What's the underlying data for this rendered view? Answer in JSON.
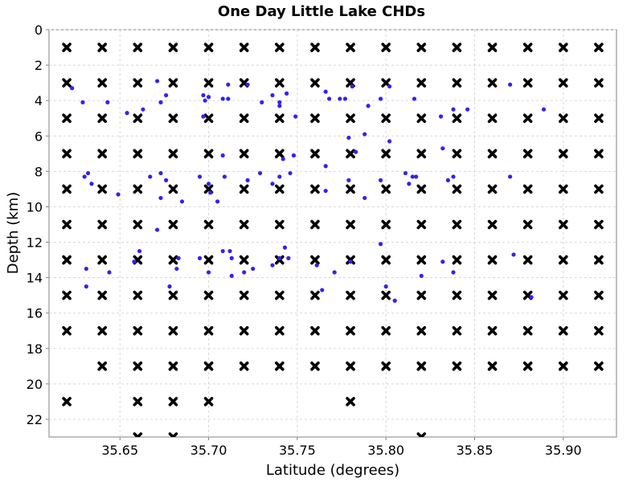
{
  "chart_data": {
    "type": "scatter",
    "title": "One Day Little Lake CHDs",
    "xlabel": "Latitude (degrees)",
    "ylabel": "Depth (km)",
    "xlim": [
      35.61,
      35.93
    ],
    "ylim": [
      0,
      23
    ],
    "y_inverted": true,
    "grid": true,
    "legend": "none",
    "x_ticks": [
      "35.65",
      "35.70",
      "35.75",
      "35.80",
      "35.85",
      "35.90"
    ],
    "x_tick_values": [
      35.65,
      35.7,
      35.75,
      35.8,
      35.85,
      35.9
    ],
    "y_ticks": [
      "0",
      "2",
      "4",
      "6",
      "8",
      "10",
      "12",
      "14",
      "16",
      "18",
      "20",
      "22"
    ],
    "y_tick_values": [
      0,
      2,
      4,
      6,
      8,
      10,
      12,
      14,
      16,
      18,
      20,
      22
    ],
    "series": [
      {
        "marker": "x",
        "color": "#000000",
        "points": [
          [
            35.62,
            1
          ],
          [
            35.64,
            1
          ],
          [
            35.66,
            1
          ],
          [
            35.68,
            1
          ],
          [
            35.7,
            1
          ],
          [
            35.72,
            1
          ],
          [
            35.74,
            1
          ],
          [
            35.76,
            1
          ],
          [
            35.78,
            1
          ],
          [
            35.8,
            1
          ],
          [
            35.82,
            1
          ],
          [
            35.84,
            1
          ],
          [
            35.86,
            1
          ],
          [
            35.88,
            1
          ],
          [
            35.9,
            1
          ],
          [
            35.92,
            1
          ],
          [
            35.62,
            3
          ],
          [
            35.64,
            3
          ],
          [
            35.66,
            3
          ],
          [
            35.68,
            3
          ],
          [
            35.7,
            3
          ],
          [
            35.72,
            3
          ],
          [
            35.74,
            3
          ],
          [
            35.76,
            3
          ],
          [
            35.78,
            3
          ],
          [
            35.8,
            3
          ],
          [
            35.82,
            3
          ],
          [
            35.84,
            3
          ],
          [
            35.86,
            3
          ],
          [
            35.88,
            3
          ],
          [
            35.9,
            3
          ],
          [
            35.92,
            3
          ],
          [
            35.62,
            5
          ],
          [
            35.64,
            5
          ],
          [
            35.66,
            5
          ],
          [
            35.68,
            5
          ],
          [
            35.7,
            5
          ],
          [
            35.72,
            5
          ],
          [
            35.74,
            5
          ],
          [
            35.76,
            5
          ],
          [
            35.78,
            5
          ],
          [
            35.8,
            5
          ],
          [
            35.82,
            5
          ],
          [
            35.84,
            5
          ],
          [
            35.86,
            5
          ],
          [
            35.88,
            5
          ],
          [
            35.9,
            5
          ],
          [
            35.92,
            5
          ],
          [
            35.62,
            7
          ],
          [
            35.64,
            7
          ],
          [
            35.66,
            7
          ],
          [
            35.68,
            7
          ],
          [
            35.7,
            7
          ],
          [
            35.72,
            7
          ],
          [
            35.74,
            7
          ],
          [
            35.76,
            7
          ],
          [
            35.78,
            7
          ],
          [
            35.8,
            7
          ],
          [
            35.82,
            7
          ],
          [
            35.84,
            7
          ],
          [
            35.86,
            7
          ],
          [
            35.88,
            7
          ],
          [
            35.9,
            7
          ],
          [
            35.92,
            7
          ],
          [
            35.62,
            9
          ],
          [
            35.64,
            9
          ],
          [
            35.66,
            9
          ],
          [
            35.68,
            9
          ],
          [
            35.7,
            9
          ],
          [
            35.72,
            9
          ],
          [
            35.74,
            9
          ],
          [
            35.76,
            9
          ],
          [
            35.78,
            9
          ],
          [
            35.8,
            9
          ],
          [
            35.82,
            9
          ],
          [
            35.84,
            9
          ],
          [
            35.86,
            9
          ],
          [
            35.88,
            9
          ],
          [
            35.9,
            9
          ],
          [
            35.92,
            9
          ],
          [
            35.62,
            11
          ],
          [
            35.64,
            11
          ],
          [
            35.66,
            11
          ],
          [
            35.68,
            11
          ],
          [
            35.7,
            11
          ],
          [
            35.72,
            11
          ],
          [
            35.74,
            11
          ],
          [
            35.76,
            11
          ],
          [
            35.78,
            11
          ],
          [
            35.8,
            11
          ],
          [
            35.82,
            11
          ],
          [
            35.84,
            11
          ],
          [
            35.86,
            11
          ],
          [
            35.88,
            11
          ],
          [
            35.9,
            11
          ],
          [
            35.92,
            11
          ],
          [
            35.62,
            13
          ],
          [
            35.64,
            13
          ],
          [
            35.66,
            13
          ],
          [
            35.68,
            13
          ],
          [
            35.7,
            13
          ],
          [
            35.72,
            13
          ],
          [
            35.74,
            13
          ],
          [
            35.76,
            13
          ],
          [
            35.78,
            13
          ],
          [
            35.8,
            13
          ],
          [
            35.82,
            13
          ],
          [
            35.84,
            13
          ],
          [
            35.86,
            13
          ],
          [
            35.88,
            13
          ],
          [
            35.9,
            13
          ],
          [
            35.92,
            13
          ],
          [
            35.62,
            15
          ],
          [
            35.64,
            15
          ],
          [
            35.66,
            15
          ],
          [
            35.68,
            15
          ],
          [
            35.7,
            15
          ],
          [
            35.72,
            15
          ],
          [
            35.74,
            15
          ],
          [
            35.76,
            15
          ],
          [
            35.78,
            15
          ],
          [
            35.8,
            15
          ],
          [
            35.82,
            15
          ],
          [
            35.84,
            15
          ],
          [
            35.86,
            15
          ],
          [
            35.88,
            15
          ],
          [
            35.9,
            15
          ],
          [
            35.92,
            15
          ],
          [
            35.62,
            17
          ],
          [
            35.64,
            17
          ],
          [
            35.66,
            17
          ],
          [
            35.68,
            17
          ],
          [
            35.7,
            17
          ],
          [
            35.72,
            17
          ],
          [
            35.74,
            17
          ],
          [
            35.76,
            17
          ],
          [
            35.78,
            17
          ],
          [
            35.8,
            17
          ],
          [
            35.82,
            17
          ],
          [
            35.84,
            17
          ],
          [
            35.86,
            17
          ],
          [
            35.88,
            17
          ],
          [
            35.9,
            17
          ],
          [
            35.92,
            17
          ],
          [
            35.64,
            19
          ],
          [
            35.66,
            19
          ],
          [
            35.68,
            19
          ],
          [
            35.7,
            19
          ],
          [
            35.72,
            19
          ],
          [
            35.74,
            19
          ],
          [
            35.76,
            19
          ],
          [
            35.78,
            19
          ],
          [
            35.8,
            19
          ],
          [
            35.82,
            19
          ],
          [
            35.84,
            19
          ],
          [
            35.86,
            19
          ],
          [
            35.88,
            19
          ],
          [
            35.9,
            19
          ],
          [
            35.92,
            19
          ],
          [
            35.62,
            21
          ],
          [
            35.66,
            21
          ],
          [
            35.68,
            21
          ],
          [
            35.7,
            21
          ],
          [
            35.78,
            21
          ],
          [
            35.66,
            23
          ],
          [
            35.68,
            23
          ],
          [
            35.82,
            23
          ]
        ]
      },
      {
        "marker": "dot",
        "color": "#3322ee",
        "points": [
          [
            35.623,
            3.3
          ],
          [
            35.629,
            4.1
          ],
          [
            35.643,
            4.1
          ],
          [
            35.671,
            2.9
          ],
          [
            35.697,
            3.7
          ],
          [
            35.711,
            3.1
          ],
          [
            35.722,
            3.1
          ],
          [
            35.673,
            4.1
          ],
          [
            35.676,
            3.7
          ],
          [
            35.698,
            4.0
          ],
          [
            35.7,
            3.8
          ],
          [
            35.708,
            3.9
          ],
          [
            35.711,
            3.9
          ],
          [
            35.73,
            4.1
          ],
          [
            35.736,
            3.7
          ],
          [
            35.74,
            4.3
          ],
          [
            35.74,
            4.1
          ],
          [
            35.744,
            3.6
          ],
          [
            35.766,
            3.5
          ],
          [
            35.768,
            3.9
          ],
          [
            35.774,
            3.9
          ],
          [
            35.777,
            3.9
          ],
          [
            35.781,
            3.2
          ],
          [
            35.79,
            4.3
          ],
          [
            35.797,
            3.9
          ],
          [
            35.802,
            3.2
          ],
          [
            35.816,
            3.9
          ],
          [
            35.831,
            4.9
          ],
          [
            35.838,
            4.5
          ],
          [
            35.846,
            4.5
          ],
          [
            35.87,
            3.1
          ],
          [
            35.889,
            4.5
          ],
          [
            35.654,
            4.7
          ],
          [
            35.663,
            4.5
          ],
          [
            35.697,
            4.9
          ],
          [
            35.749,
            4.9
          ],
          [
            35.779,
            6.1
          ],
          [
            35.788,
            5.9
          ],
          [
            35.802,
            6.3
          ],
          [
            35.783,
            6.9
          ],
          [
            35.708,
            7.1
          ],
          [
            35.742,
            7.3
          ],
          [
            35.748,
            7.1
          ],
          [
            35.766,
            7.7
          ],
          [
            35.832,
            6.7
          ],
          [
            35.63,
            8.3
          ],
          [
            35.632,
            8.1
          ],
          [
            35.634,
            8.7
          ],
          [
            35.649,
            9.3
          ],
          [
            35.667,
            8.3
          ],
          [
            35.673,
            8.1
          ],
          [
            35.676,
            8.5
          ],
          [
            35.673,
            9.5
          ],
          [
            35.685,
            9.7
          ],
          [
            35.695,
            8.3
          ],
          [
            35.7,
            8.7
          ],
          [
            35.701,
            9.2
          ],
          [
            35.705,
            9.7
          ],
          [
            35.709,
            8.3
          ],
          [
            35.722,
            8.5
          ],
          [
            35.729,
            8.1
          ],
          [
            35.736,
            8.7
          ],
          [
            35.74,
            8.3
          ],
          [
            35.746,
            8.1
          ],
          [
            35.766,
            9.1
          ],
          [
            35.779,
            8.5
          ],
          [
            35.788,
            9.5
          ],
          [
            35.797,
            8.5
          ],
          [
            35.811,
            8.1
          ],
          [
            35.813,
            8.7
          ],
          [
            35.815,
            8.3
          ],
          [
            35.817,
            8.3
          ],
          [
            35.835,
            8.5
          ],
          [
            35.838,
            8.3
          ],
          [
            35.87,
            8.3
          ],
          [
            35.658,
            13.1
          ],
          [
            35.661,
            12.5
          ],
          [
            35.671,
            11.3
          ],
          [
            35.683,
            12.9
          ],
          [
            35.695,
            12.9
          ],
          [
            35.7,
            13.7
          ],
          [
            35.708,
            12.5
          ],
          [
            35.712,
            12.5
          ],
          [
            35.713,
            12.9
          ],
          [
            35.713,
            13.9
          ],
          [
            35.72,
            13.7
          ],
          [
            35.725,
            13.5
          ],
          [
            35.736,
            13.3
          ],
          [
            35.74,
            12.9
          ],
          [
            35.743,
            12.3
          ],
          [
            35.745,
            12.9
          ],
          [
            35.761,
            13.3
          ],
          [
            35.764,
            14.7
          ],
          [
            35.771,
            13.7
          ],
          [
            35.78,
            13.1
          ],
          [
            35.797,
            12.1
          ],
          [
            35.8,
            14.5
          ],
          [
            35.805,
            15.3
          ],
          [
            35.82,
            13.9
          ],
          [
            35.832,
            13.1
          ],
          [
            35.838,
            13.7
          ],
          [
            35.872,
            12.7
          ],
          [
            35.882,
            15.1
          ],
          [
            35.631,
            13.5
          ],
          [
            35.631,
            14.5
          ],
          [
            35.644,
            13.7
          ],
          [
            35.678,
            14.5
          ],
          [
            35.682,
            13.5
          ]
        ]
      }
    ]
  }
}
